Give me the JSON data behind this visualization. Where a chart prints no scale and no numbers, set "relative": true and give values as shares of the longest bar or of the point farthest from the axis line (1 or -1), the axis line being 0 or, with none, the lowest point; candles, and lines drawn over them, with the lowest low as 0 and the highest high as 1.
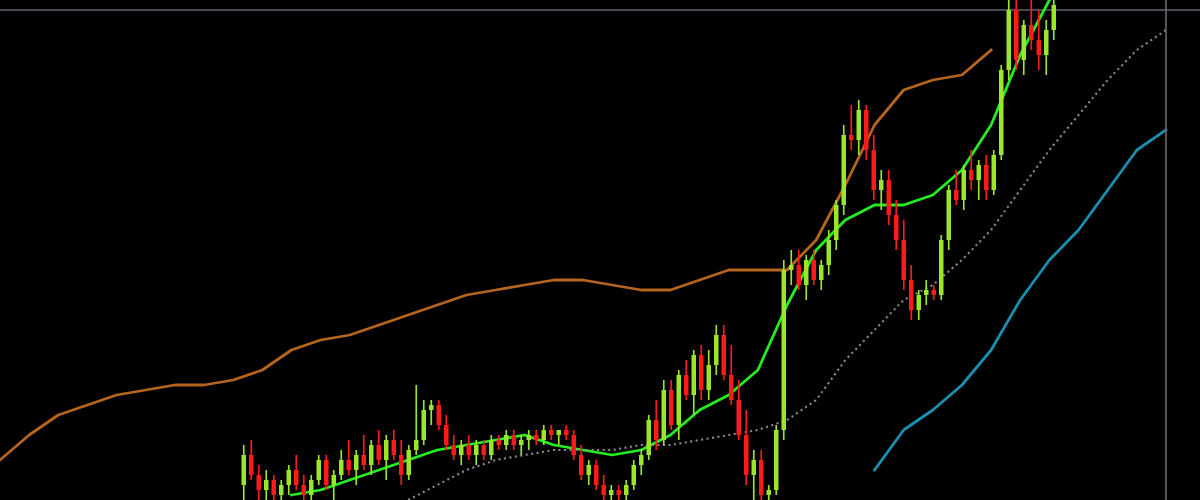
{
  "chart_data": [
    {
      "type": "candlestick",
      "relative": true,
      "categories": [
        null,
        null,
        null,
        null,
        null,
        null,
        null,
        null,
        null,
        null,
        null,
        null,
        null,
        null,
        null,
        null,
        null,
        null,
        null,
        null,
        null,
        null,
        null,
        null,
        null,
        null,
        null,
        null,
        null,
        null,
        null,
        null,
        null,
        null,
        null,
        null,
        null,
        null,
        null,
        null,
        null,
        null,
        null,
        null,
        null,
        null,
        null,
        null,
        null,
        null,
        null,
        null,
        null,
        null,
        null,
        null,
        null,
        null,
        null,
        null,
        null,
        null,
        null,
        null,
        null,
        null,
        null,
        null,
        null,
        null,
        null,
        null,
        null,
        null,
        null,
        null,
        null,
        null,
        null,
        null,
        null,
        null,
        null,
        null,
        null,
        null,
        null,
        null,
        null,
        null,
        null,
        null,
        null,
        null,
        null,
        null,
        null,
        null,
        null,
        null,
        null,
        null,
        null,
        null,
        null,
        null,
        null,
        null,
        null
      ],
      "colors": [
        "#9ae62a",
        "#ff1a1a",
        "#ff1a1a",
        "#9ae62a",
        "#ff1a1a",
        "#9ae62a",
        "#9ae62a",
        "#ff1a1a",
        "#ff1a1a",
        "#9ae62a",
        "#9ae62a",
        "#ff1a1a",
        "#9ae62a",
        "#9ae62a",
        "#ff1a1a",
        "#9ae62a",
        "#ff1a1a",
        "#9ae62a",
        "#ff1a1a",
        "#9ae62a",
        "#ff1a1a",
        "#ff1a1a",
        "#9ae62a",
        "#9ae62a",
        "#9ae62a",
        "#9ae62a",
        "#ff1a1a",
        "#ff1a1a",
        "#ff1a1a",
        "#9ae62a",
        "#ff1a1a",
        "#9ae62a",
        "#ff1a1a",
        "#9ae62a",
        "#ff1a1a",
        "#9ae62a",
        "#ff1a1a",
        "#9ae62a",
        "#9ae62a",
        "#ff1a1a",
        "#9ae62a",
        "#ff1a1a",
        "#9ae62a",
        "#ff1a1a",
        "#ff1a1a",
        "#ff1a1a",
        "#9ae62a",
        "#ff1a1a",
        "#ff1a1a",
        "#9ae62a",
        "#ff1a1a",
        "#9ae62a",
        "#9ae62a",
        "#9ae62a",
        "#9ae62a",
        "#ff1a1a",
        "#9ae62a",
        "#ff1a1a",
        "#9ae62a",
        "#ff1a1a",
        "#9ae62a",
        "#ff1a1a",
        "#9ae62a",
        "#9ae62a",
        "#ff1a1a",
        "#ff1a1a",
        "#ff1a1a",
        "#ff1a1a",
        "#9ae62a",
        "#ff1a1a",
        "#9ae62a",
        "#9ae62a",
        "#9ae62a",
        "#9ae62a",
        "#ff1a1a",
        "#9ae62a",
        "#ff1a1a",
        "#9ae62a",
        "#9ae62a",
        "#9ae62a",
        "#9ae62a",
        "#ff1a1a",
        "#9ae62a",
        "#ff1a1a",
        "#ff1a1a",
        "#9ae62a",
        "#ff1a1a",
        "#ff1a1a",
        "#ff1a1a",
        "#ff1a1a",
        "#9ae62a",
        "#9ae62a",
        "#ff1a1a",
        "#9ae62a",
        "#9ae62a",
        "#ff1a1a",
        "#9ae62a",
        "#ff1a1a",
        "#9ae62a",
        "#ff1a1a",
        "#9ae62a",
        "#9ae62a",
        "#9ae62a",
        "#ff1a1a",
        "#9ae62a",
        "#ff1a1a",
        "#ff1a1a",
        "#9ae62a",
        "#9ae62a"
      ],
      "ohlc": [
        [
          0.03,
          0.11,
          0.0,
          0.09
        ],
        [
          0.09,
          0.12,
          0.04,
          0.05
        ],
        [
          0.05,
          0.07,
          0.0,
          0.02
        ],
        [
          0.02,
          0.06,
          0.0,
          0.04
        ],
        [
          0.04,
          0.05,
          0.0,
          0.01
        ],
        [
          0.01,
          0.04,
          0.0,
          0.03
        ],
        [
          0.03,
          0.07,
          0.01,
          0.06
        ],
        [
          0.06,
          0.09,
          0.02,
          0.03
        ],
        [
          0.03,
          0.05,
          0.0,
          0.01
        ],
        [
          0.01,
          0.05,
          0.0,
          0.04
        ],
        [
          0.04,
          0.09,
          0.03,
          0.08
        ],
        [
          0.08,
          0.09,
          0.02,
          0.03
        ],
        [
          0.03,
          0.06,
          0.0,
          0.05
        ],
        [
          0.05,
          0.1,
          0.04,
          0.08
        ],
        [
          0.08,
          0.12,
          0.05,
          0.06
        ],
        [
          0.06,
          0.1,
          0.03,
          0.09
        ],
        [
          0.09,
          0.13,
          0.06,
          0.07
        ],
        [
          0.07,
          0.12,
          0.05,
          0.11
        ],
        [
          0.11,
          0.14,
          0.07,
          0.08
        ],
        [
          0.08,
          0.13,
          0.04,
          0.12
        ],
        [
          0.12,
          0.14,
          0.08,
          0.09
        ],
        [
          0.09,
          0.12,
          0.03,
          0.05
        ],
        [
          0.05,
          0.11,
          0.04,
          0.1
        ],
        [
          0.1,
          0.23,
          0.09,
          0.12
        ],
        [
          0.12,
          0.2,
          0.11,
          0.18
        ],
        [
          0.18,
          0.2,
          0.15,
          0.19
        ],
        [
          0.19,
          0.2,
          0.14,
          0.15
        ],
        [
          0.15,
          0.17,
          0.1,
          0.11
        ],
        [
          0.11,
          0.13,
          0.08,
          0.09
        ],
        [
          0.09,
          0.12,
          0.07,
          0.11
        ],
        [
          0.11,
          0.13,
          0.08,
          0.09
        ],
        [
          0.09,
          0.12,
          0.07,
          0.11
        ],
        [
          0.11,
          0.12,
          0.08,
          0.09
        ],
        [
          0.09,
          0.13,
          0.08,
          0.12
        ],
        [
          0.12,
          0.13,
          0.1,
          0.11
        ],
        [
          0.11,
          0.14,
          0.1,
          0.13
        ],
        [
          0.13,
          0.14,
          0.1,
          0.11
        ],
        [
          0.11,
          0.13,
          0.09,
          0.12
        ],
        [
          0.12,
          0.14,
          0.1,
          0.13
        ],
        [
          0.13,
          0.14,
          0.11,
          0.12
        ],
        [
          0.12,
          0.15,
          0.11,
          0.14
        ],
        [
          0.14,
          0.15,
          0.12,
          0.13
        ],
        [
          0.13,
          0.14,
          0.11,
          0.14
        ],
        [
          0.14,
          0.15,
          0.12,
          0.13
        ],
        [
          0.13,
          0.14,
          0.08,
          0.09
        ],
        [
          0.09,
          0.11,
          0.04,
          0.05
        ],
        [
          0.05,
          0.08,
          0.03,
          0.07
        ],
        [
          0.07,
          0.08,
          0.02,
          0.03
        ],
        [
          0.03,
          0.05,
          0.0,
          0.01
        ],
        [
          0.01,
          0.03,
          0.0,
          0.02
        ],
        [
          0.02,
          0.03,
          0.0,
          0.01
        ],
        [
          0.01,
          0.04,
          0.0,
          0.03
        ],
        [
          0.03,
          0.08,
          0.02,
          0.07
        ],
        [
          0.07,
          0.1,
          0.05,
          0.09
        ],
        [
          0.09,
          0.17,
          0.08,
          0.16
        ],
        [
          0.16,
          0.2,
          0.1,
          0.12
        ],
        [
          0.12,
          0.24,
          0.11,
          0.22
        ],
        [
          0.22,
          0.24,
          0.14,
          0.15
        ],
        [
          0.15,
          0.26,
          0.12,
          0.25
        ],
        [
          0.25,
          0.28,
          0.2,
          0.21
        ],
        [
          0.21,
          0.3,
          0.17,
          0.29
        ],
        [
          0.29,
          0.31,
          0.2,
          0.22
        ],
        [
          0.22,
          0.3,
          0.2,
          0.27
        ],
        [
          0.27,
          0.35,
          0.25,
          0.33
        ],
        [
          0.33,
          0.35,
          0.24,
          0.25
        ],
        [
          0.25,
          0.31,
          0.19,
          0.2
        ],
        [
          0.2,
          0.24,
          0.12,
          0.13
        ],
        [
          0.13,
          0.18,
          0.03,
          0.05
        ],
        [
          0.05,
          0.1,
          0.0,
          0.08
        ],
        [
          0.08,
          0.1,
          0.0,
          0.01
        ],
        [
          0.01,
          0.03,
          0.0,
          0.02
        ],
        [
          0.02,
          0.15,
          0.01,
          0.14
        ],
        [
          0.14,
          0.48,
          0.12,
          0.46
        ],
        [
          0.46,
          0.5,
          0.43,
          0.47
        ],
        [
          0.47,
          0.5,
          0.42,
          0.43
        ],
        [
          0.43,
          0.49,
          0.4,
          0.48
        ],
        [
          0.48,
          0.5,
          0.43,
          0.44
        ],
        [
          0.44,
          0.48,
          0.42,
          0.47
        ],
        [
          0.47,
          0.54,
          0.45,
          0.52
        ],
        [
          0.52,
          0.6,
          0.5,
          0.59
        ],
        [
          0.59,
          0.75,
          0.57,
          0.73
        ],
        [
          0.73,
          0.79,
          0.7,
          0.72
        ],
        [
          0.72,
          0.8,
          0.69,
          0.78
        ],
        [
          0.78,
          0.79,
          0.68,
          0.7
        ],
        [
          0.7,
          0.73,
          0.6,
          0.62
        ],
        [
          0.62,
          0.66,
          0.58,
          0.64
        ],
        [
          0.64,
          0.66,
          0.55,
          0.57
        ],
        [
          0.57,
          0.6,
          0.5,
          0.52
        ],
        [
          0.52,
          0.56,
          0.42,
          0.44
        ],
        [
          0.44,
          0.47,
          0.36,
          0.38
        ],
        [
          0.38,
          0.42,
          0.36,
          0.41
        ],
        [
          0.41,
          0.44,
          0.39,
          0.42
        ],
        [
          0.42,
          0.43,
          0.4,
          0.41
        ],
        [
          0.41,
          0.53,
          0.4,
          0.52
        ],
        [
          0.52,
          0.63,
          0.5,
          0.62
        ],
        [
          0.62,
          0.66,
          0.59,
          0.6
        ],
        [
          0.6,
          0.67,
          0.58,
          0.66
        ],
        [
          0.66,
          0.7,
          0.62,
          0.64
        ],
        [
          0.64,
          0.68,
          0.6,
          0.67
        ],
        [
          0.67,
          0.69,
          0.6,
          0.62
        ],
        [
          0.62,
          0.7,
          0.61,
          0.69
        ],
        [
          0.69,
          0.87,
          0.68,
          0.86
        ],
        [
          0.86,
          1.0,
          0.84,
          0.98
        ],
        [
          0.98,
          1.0,
          0.86,
          0.88
        ],
        [
          0.88,
          0.96,
          0.85,
          0.95
        ],
        [
          0.95,
          1.0,
          0.9,
          0.92
        ],
        [
          0.92,
          0.98,
          0.86,
          0.89
        ],
        [
          0.89,
          0.96,
          0.85,
          0.94
        ],
        [
          0.94,
          1.0,
          0.92,
          0.99
        ]
      ]
    },
    {
      "type": "line",
      "relative": true,
      "line_style": "solid",
      "categories": [
        null,
        null,
        null,
        null,
        null,
        null,
        null,
        null,
        null,
        null,
        null,
        null,
        null,
        null,
        null,
        null,
        null,
        null,
        null,
        null,
        null,
        null,
        null,
        null,
        null,
        null,
        null,
        null,
        null,
        null,
        null,
        null,
        null,
        null,
        null,
        null,
        null,
        null,
        null,
        null,
        null
      ],
      "series": [
        {
          "color": "#b5651d",
          "values": [
            0.08,
            0.13,
            0.17,
            0.19,
            0.21,
            0.22,
            0.23,
            0.23,
            0.24,
            0.26,
            0.3,
            0.32,
            0.33,
            0.35,
            0.37,
            0.39,
            0.41,
            0.42,
            0.43,
            0.44,
            0.44,
            0.43,
            0.42,
            0.42,
            0.44,
            0.46,
            0.46,
            0.46,
            0.52,
            0.63,
            0.75,
            0.82,
            0.84,
            0.85,
            0.9,
            null,
            null,
            null,
            null,
            null,
            null
          ]
        },
        {
          "color": "#22ee22",
          "values": [
            null,
            null,
            null,
            null,
            null,
            null,
            null,
            null,
            null,
            null,
            0.01,
            0.02,
            0.04,
            0.06,
            0.08,
            0.1,
            0.11,
            0.12,
            0.13,
            0.11,
            0.1,
            0.09,
            0.1,
            0.13,
            0.18,
            0.21,
            0.26,
            0.39,
            0.5,
            0.56,
            0.59,
            0.59,
            0.61,
            0.66,
            0.75,
            0.89,
            1.0,
            null,
            null,
            null,
            null
          ]
        },
        {
          "color": "#8a8a8a",
          "line_style": "dotted",
          "values": [
            null,
            null,
            null,
            null,
            null,
            null,
            null,
            null,
            null,
            null,
            null,
            null,
            null,
            null,
            0.0,
            0.03,
            0.06,
            0.08,
            0.09,
            0.1,
            0.1,
            0.1,
            0.11,
            0.11,
            0.12,
            0.13,
            0.14,
            0.16,
            0.2,
            0.28,
            0.34,
            0.4,
            0.43,
            0.48,
            0.54,
            0.62,
            0.7,
            0.77,
            0.84,
            0.9,
            0.94
          ]
        },
        {
          "color": "#1a8fb0",
          "values": [
            null,
            null,
            null,
            null,
            null,
            null,
            null,
            null,
            null,
            null,
            null,
            null,
            null,
            null,
            null,
            null,
            null,
            null,
            null,
            null,
            null,
            null,
            null,
            null,
            null,
            null,
            null,
            null,
            null,
            null,
            0.06,
            0.14,
            0.18,
            0.23,
            0.3,
            0.4,
            0.48,
            0.54,
            0.62,
            0.7,
            0.74
          ]
        }
      ],
      "ref_lines": [
        {
          "axis": "y",
          "value": 0.98,
          "color": "#5a6470"
        }
      ]
    }
  ]
}
